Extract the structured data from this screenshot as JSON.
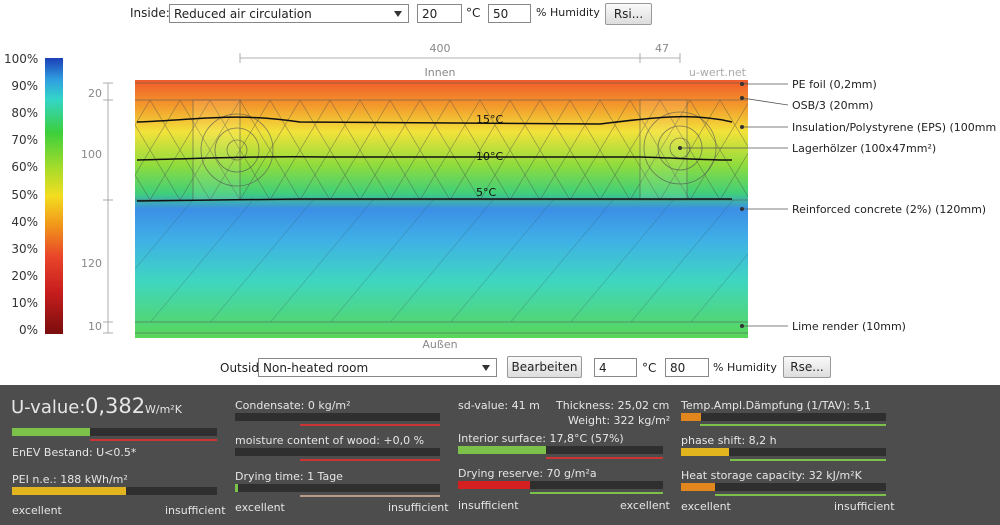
{
  "inside": {
    "label": "Inside:",
    "select": "Reduced air circulation",
    "temp": "20",
    "temp_unit": "°C",
    "humidity": "50",
    "humidity_unit": "% Humidity",
    "button": "Rsi..."
  },
  "scale": {
    "labels": [
      "100%",
      "90%",
      "80%",
      "70%",
      "60%",
      "50%",
      "40%",
      "30%",
      "20%",
      "10%",
      "0%"
    ]
  },
  "dimensions": {
    "top": [
      "400",
      "47"
    ],
    "left": [
      "20",
      "100",
      "120",
      "10"
    ]
  },
  "diagram": {
    "top_label": "Innen",
    "watermark": "u-wert.net",
    "bottom_label": "Außen",
    "isotherms": [
      "15°C",
      "10°C",
      "5°C"
    ]
  },
  "layers": [
    "PE foil (0,2mm)",
    "OSB/3 (20mm)",
    "Insulation/Polystyrene (EPS) (100mm",
    "Lagerhölzer (100x47mm²)",
    "Reinforced concrete (2%) (120mm)",
    "Lime render (10mm)"
  ],
  "outside": {
    "label": "Outside",
    "select": "Non-heated room",
    "button": "Bearbeiten",
    "temp": "4",
    "temp_unit": "°C",
    "humidity": "80",
    "humidity_unit": "% Humidity",
    "rse": "Rse..."
  },
  "results": {
    "col1": {
      "u_label": "U-value:",
      "u_value": "0,382",
      "u_unit": "W/m²K",
      "enev": "EnEV Bestand: U<0.5*",
      "pei": "PEI n.e.: 188 kWh/m²",
      "left": "excellent",
      "right": "insufficient"
    },
    "col2": {
      "condensate": "Condensate: 0 kg/m²",
      "moisture": "moisture content of wood: +0,0 %",
      "drying_time": "Drying time: 1 Tage",
      "left": "excellent",
      "right": "insufficient"
    },
    "col3": {
      "sd": "sd-value: 41 m",
      "thickness": "Thickness: 25,02 cm",
      "weight": "Weight: 322 kg/m²",
      "interior": "Interior surface: 17,8°C (57%)",
      "drying_reserve": "Drying reserve: 70 g/m²a",
      "left": "insufficient",
      "right": "excellent"
    },
    "col4": {
      "tav": "Temp.Ampl.Dämpfung (1/TAV): 5,1",
      "phase": "phase shift: 8,2 h",
      "heat": "Heat storage capacity: 32 kJ/m²K",
      "left": "excellent",
      "right": "insufficient"
    }
  }
}
